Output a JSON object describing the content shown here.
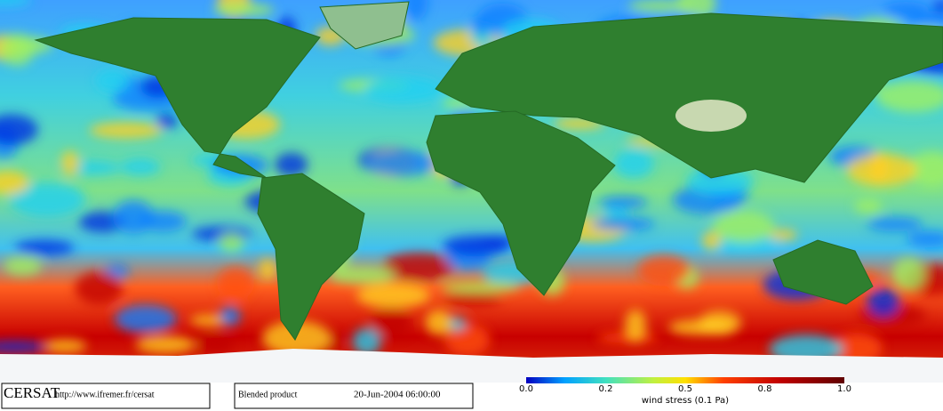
{
  "footer": {
    "logo": "CERSAT",
    "url": "http://www.ifremer.fr/cersat",
    "product": "Blended product",
    "date": "20-Jun-2004 06:00:00"
  },
  "colorbar": {
    "label": "wind stress (0.1 Pa)",
    "ticks": [
      "0.0",
      "0.2",
      "0.5",
      "0.8",
      "1.0"
    ]
  }
}
